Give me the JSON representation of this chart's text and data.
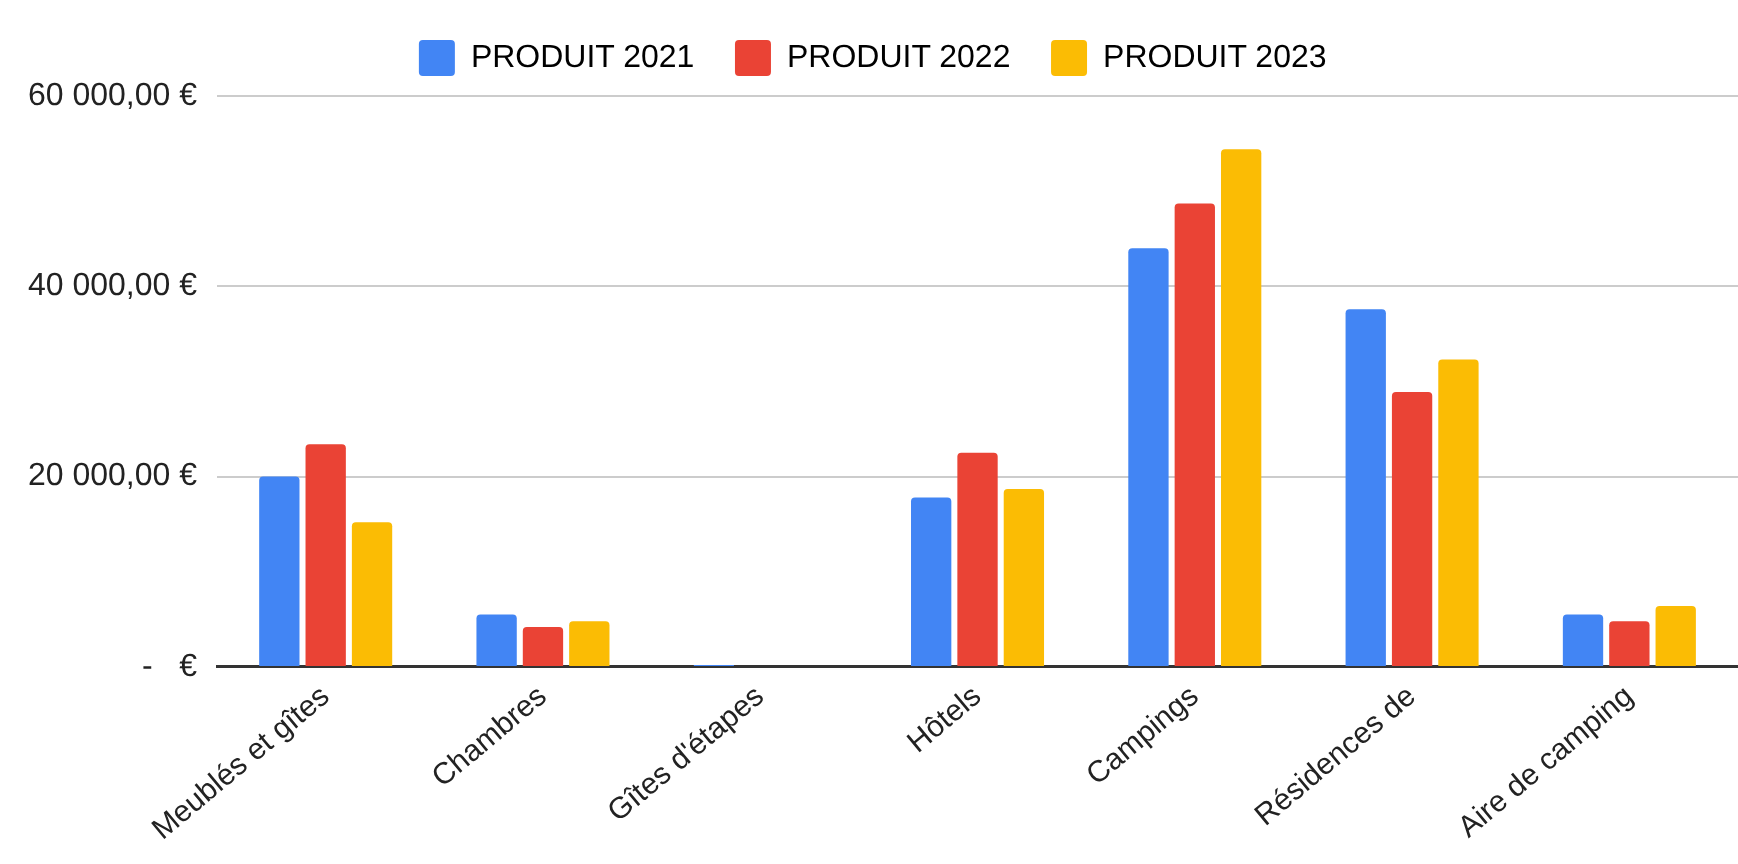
{
  "chart_data": {
    "type": "bar",
    "categories": [
      "Meublés et gîtes",
      "Chambres",
      "Gîtes d'étapes",
      "Hôtels",
      "Campings",
      "Résidences de",
      "Aire de camping"
    ],
    "series": [
      {
        "name": "PRODUIT 2021",
        "color": "#4285f4",
        "values": [
          20000,
          5500,
          200,
          17800,
          44000,
          37600,
          5500
        ]
      },
      {
        "name": "PRODUIT 2022",
        "color": "#ea4335",
        "values": [
          23400,
          4200,
          0,
          22500,
          48700,
          28900,
          4800
        ]
      },
      {
        "name": "PRODUIT 2023",
        "color": "#fbbc04",
        "values": [
          15200,
          4800,
          0,
          18700,
          54400,
          32300,
          6400
        ]
      }
    ],
    "ylim": [
      0,
      60000
    ],
    "yticks": [
      {
        "value": 0,
        "label": "-   €"
      },
      {
        "value": 20000,
        "label": "20 000,00 €"
      },
      {
        "value": 40000,
        "label": "40 000,00 €"
      },
      {
        "value": 60000,
        "label": "60 000,00 €"
      }
    ],
    "grid": "y",
    "legend": "top"
  }
}
